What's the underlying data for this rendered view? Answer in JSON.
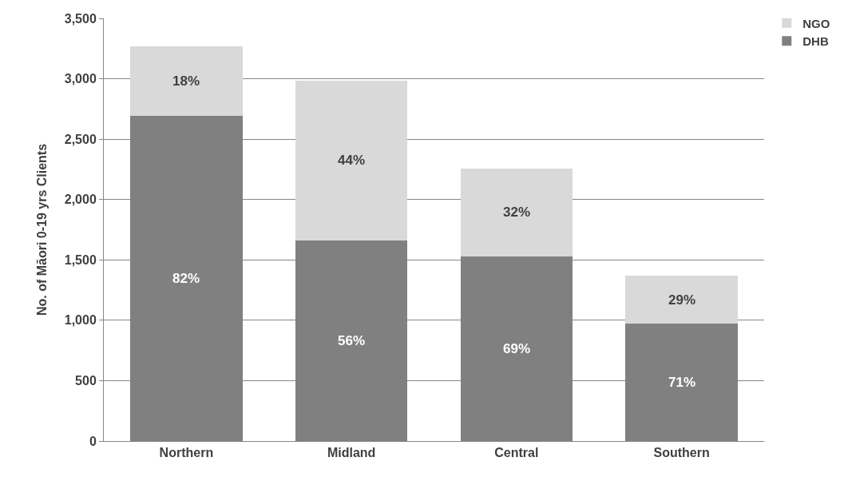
{
  "chart_data": {
    "type": "bar",
    "stacked": true,
    "ylabel": "No. of Māori 0-19 yrs Clients",
    "categories": [
      "Northern",
      "Midland",
      "Central",
      "Southern"
    ],
    "series": [
      {
        "name": "DHB",
        "color": "#808080",
        "values": [
          2695,
          1660,
          1530,
          970
        ]
      },
      {
        "name": "NGO",
        "color": "#d9d9d9",
        "values": [
          575,
          1325,
          725,
          400
        ]
      }
    ],
    "annotations": [
      "82%",
      "18%",
      "56%",
      "44%",
      "69%",
      "32%",
      "71%",
      "29%"
    ],
    "ylim": [
      0,
      3500
    ],
    "yticks": [
      {
        "value": 0,
        "label": "0"
      },
      {
        "value": 500,
        "label": "500"
      },
      {
        "value": 1000,
        "label": "1,000"
      },
      {
        "value": 1500,
        "label": "1,500"
      },
      {
        "value": 2000,
        "label": "2,000"
      },
      {
        "value": 2500,
        "label": "2,500"
      },
      {
        "value": 3000,
        "label": "3,000"
      },
      {
        "value": 3500,
        "label": "3,500"
      }
    ],
    "grid": "y",
    "legend": "top right"
  }
}
